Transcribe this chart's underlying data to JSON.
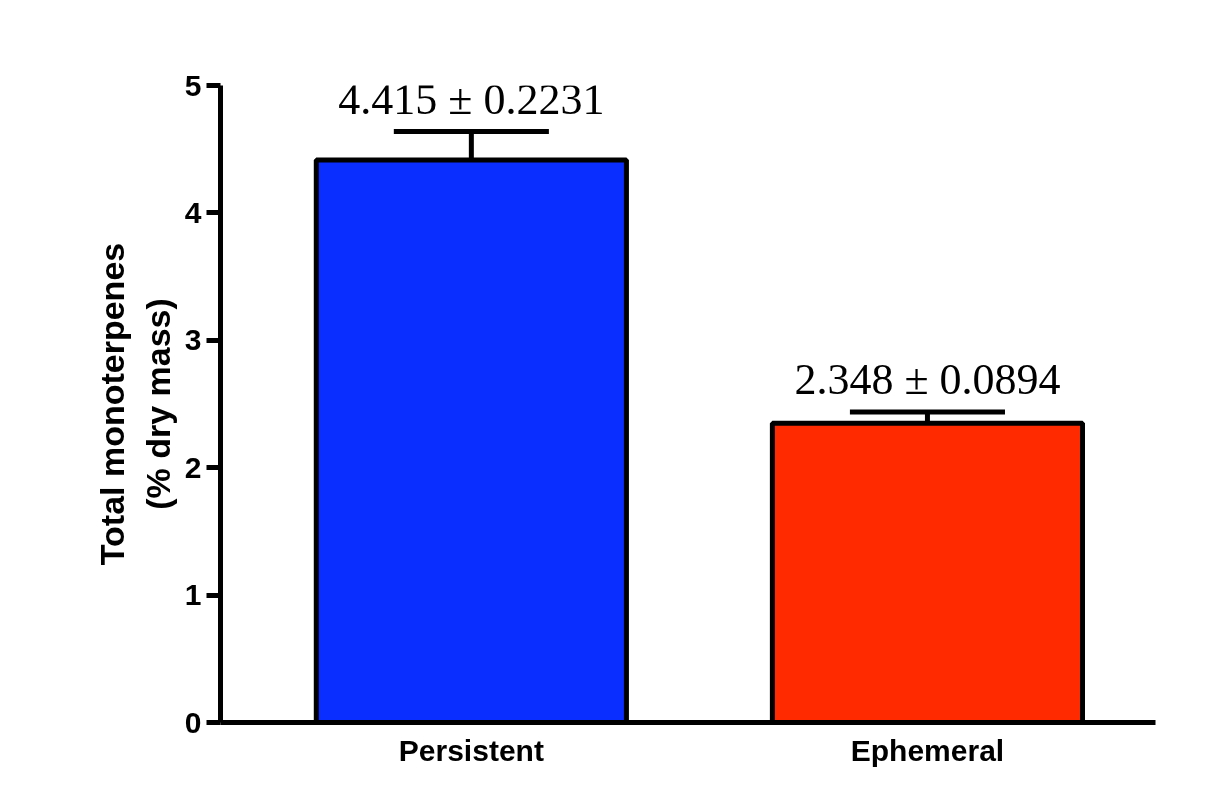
{
  "chart_data": {
    "type": "bar",
    "ylabel": "Total monoterpenes\n(% dry mass)",
    "categories": [
      "Persistent",
      "Ephemeral"
    ],
    "values": [
      4.415,
      2.348
    ],
    "colors": [
      "#0a2eff",
      "#ff2a00"
    ],
    "errors": [
      [
        4.415,
        4.6381
      ],
      [
        2.348,
        2.4374
      ]
    ],
    "value_labels": [
      "4.415 ± 0.2231",
      "2.348 ± 0.0894"
    ],
    "ylim": [
      0,
      5
    ],
    "yticks": [
      0,
      1,
      2,
      3,
      4,
      5
    ],
    "grid": false
  }
}
